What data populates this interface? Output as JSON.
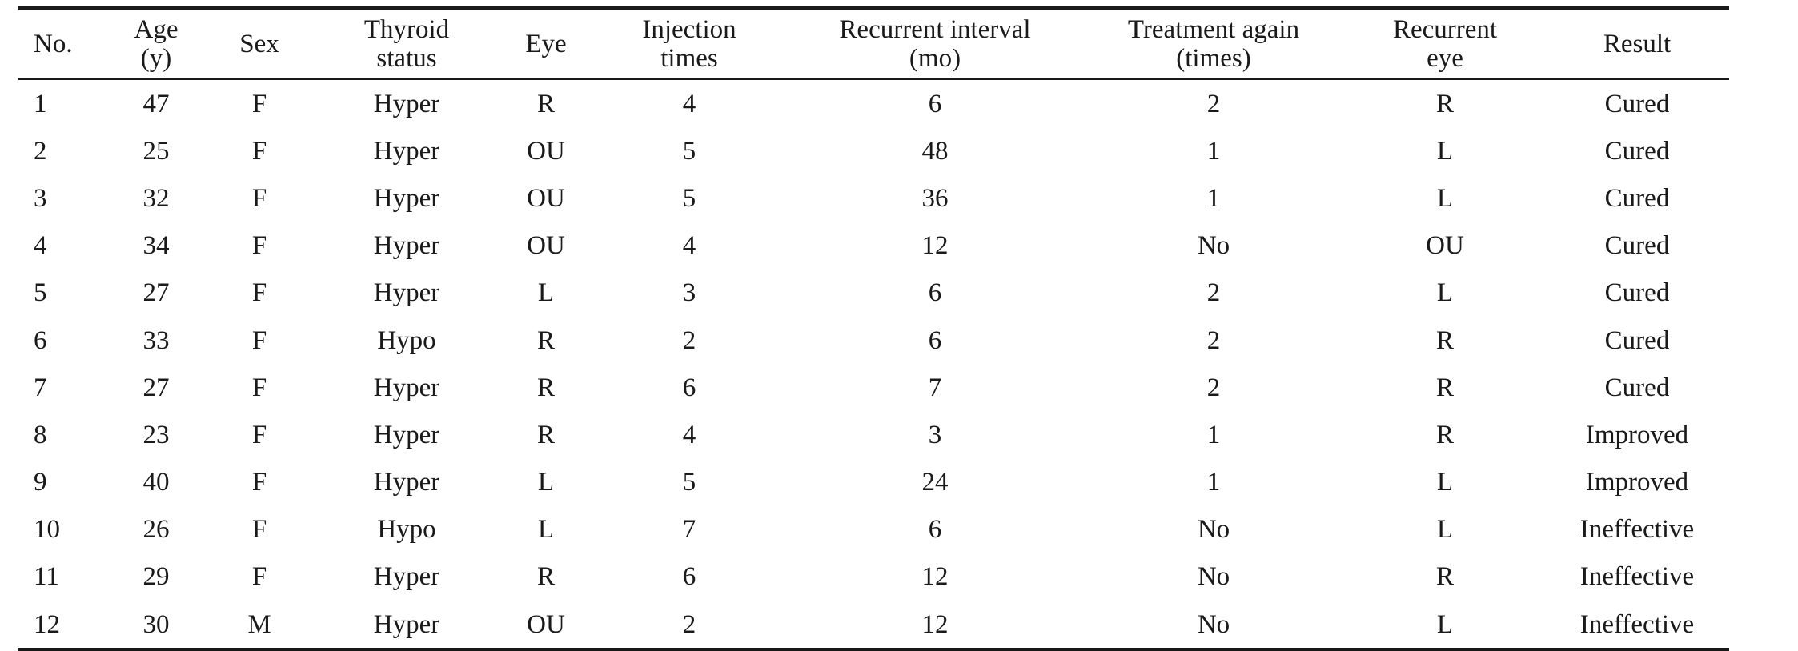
{
  "table": {
    "headers": [
      [
        "No.",
        ""
      ],
      [
        "Age",
        "(y)"
      ],
      [
        "Sex",
        ""
      ],
      [
        "Thyroid",
        "status"
      ],
      [
        "Eye",
        ""
      ],
      [
        "Injection",
        "times"
      ],
      [
        "Recurrent interval",
        "(mo)"
      ],
      [
        "Treatment again",
        "(times)"
      ],
      [
        "Recurrent",
        "eye"
      ],
      [
        "Result",
        ""
      ]
    ],
    "rows": [
      [
        "1",
        "47",
        "F",
        "Hyper",
        "R",
        "4",
        "6",
        "2",
        "R",
        "Cured"
      ],
      [
        "2",
        "25",
        "F",
        "Hyper",
        "OU",
        "5",
        "48",
        "1",
        "L",
        "Cured"
      ],
      [
        "3",
        "32",
        "F",
        "Hyper",
        "OU",
        "5",
        "36",
        "1",
        "L",
        "Cured"
      ],
      [
        "4",
        "34",
        "F",
        "Hyper",
        "OU",
        "4",
        "12",
        "No",
        "OU",
        "Cured"
      ],
      [
        "5",
        "27",
        "F",
        "Hyper",
        "L",
        "3",
        "6",
        "2",
        "L",
        "Cured"
      ],
      [
        "6",
        "33",
        "F",
        "Hypo",
        "R",
        "2",
        "6",
        "2",
        "R",
        "Cured"
      ],
      [
        "7",
        "27",
        "F",
        "Hyper",
        "R",
        "6",
        "7",
        "2",
        "R",
        "Cured"
      ],
      [
        "8",
        "23",
        "F",
        "Hyper",
        "R",
        "4",
        "3",
        "1",
        "R",
        "Improved"
      ],
      [
        "9",
        "40",
        "F",
        "Hyper",
        "L",
        "5",
        "24",
        "1",
        "L",
        "Improved"
      ],
      [
        "10",
        "26",
        "F",
        "Hypo",
        "L",
        "7",
        "6",
        "No",
        "L",
        "Ineffective"
      ],
      [
        "11",
        "29",
        "F",
        "Hyper",
        "R",
        "6",
        "12",
        "No",
        "R",
        "Ineffective"
      ],
      [
        "12",
        "30",
        "M",
        "Hyper",
        "OU",
        "2",
        "12",
        "No",
        "L",
        "Ineffective"
      ]
    ]
  }
}
